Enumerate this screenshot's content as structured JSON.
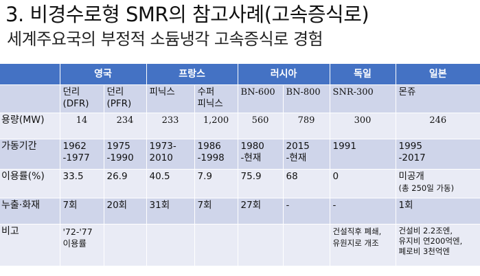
{
  "title": "3. 비경수로형 SMR의 참고사례(고속증식로)",
  "subtitle": "세계주요국의 부정적 소듐냉각 고속증식로 경험",
  "countries": [
    "영국",
    "프랑스",
    "러시아",
    "독일",
    "일본"
  ],
  "reactors": [
    {
      "name": "던리\n(DFR)",
      "capacity": "14",
      "period": "1962\n-1977",
      "utilization": "33.5",
      "utilization_note": "",
      "accidents": "7회",
      "remarks": "'72-'77\n이용률"
    },
    {
      "name": "던리\n(PFR)",
      "capacity": "234",
      "period": "1975\n-1990",
      "utilization": "26.9",
      "utilization_note": "",
      "accidents": "20회",
      "remarks": ""
    },
    {
      "name": "피닉스",
      "capacity": "233",
      "period": "1973-\n2010",
      "utilization": "40.5",
      "utilization_note": "",
      "accidents": "31회",
      "remarks": ""
    },
    {
      "name": "수퍼\n피닉스",
      "capacity": "1,200",
      "period": "1986\n-1998",
      "utilization": "7.9",
      "utilization_note": "",
      "accidents": "7회",
      "remarks": ""
    },
    {
      "name": "BN-600",
      "capacity": "560",
      "period": "1980\n-현재",
      "utilization": "75.9",
      "utilization_note": "",
      "accidents": "27회",
      "remarks": ""
    },
    {
      "name": "BN-800",
      "capacity": "789",
      "period": "2015\n-현재",
      "utilization": "68",
      "utilization_note": "",
      "accidents": "-",
      "remarks": ""
    },
    {
      "name": "SNR-300",
      "capacity": "300",
      "period": "1991",
      "utilization": "0",
      "utilization_note": "",
      "accidents": "-",
      "remarks": "건설직후 폐쇄,\n유원지로 개조"
    },
    {
      "name": "몬쥬",
      "capacity": "246",
      "period": "1995\n-2017",
      "utilization": "미공개",
      "utilization_note": "(총 250일 가동)",
      "accidents": "1회",
      "remarks": "건설비 2.2조엔,\n유지비 연200억엔,\n폐로비 3천억엔"
    }
  ],
  "row_labels": {
    "capacity": "용량(MW)",
    "period": "가동기간",
    "utilization": "이용률(%)",
    "accidents": "누출·화재",
    "remarks": "비고"
  }
}
